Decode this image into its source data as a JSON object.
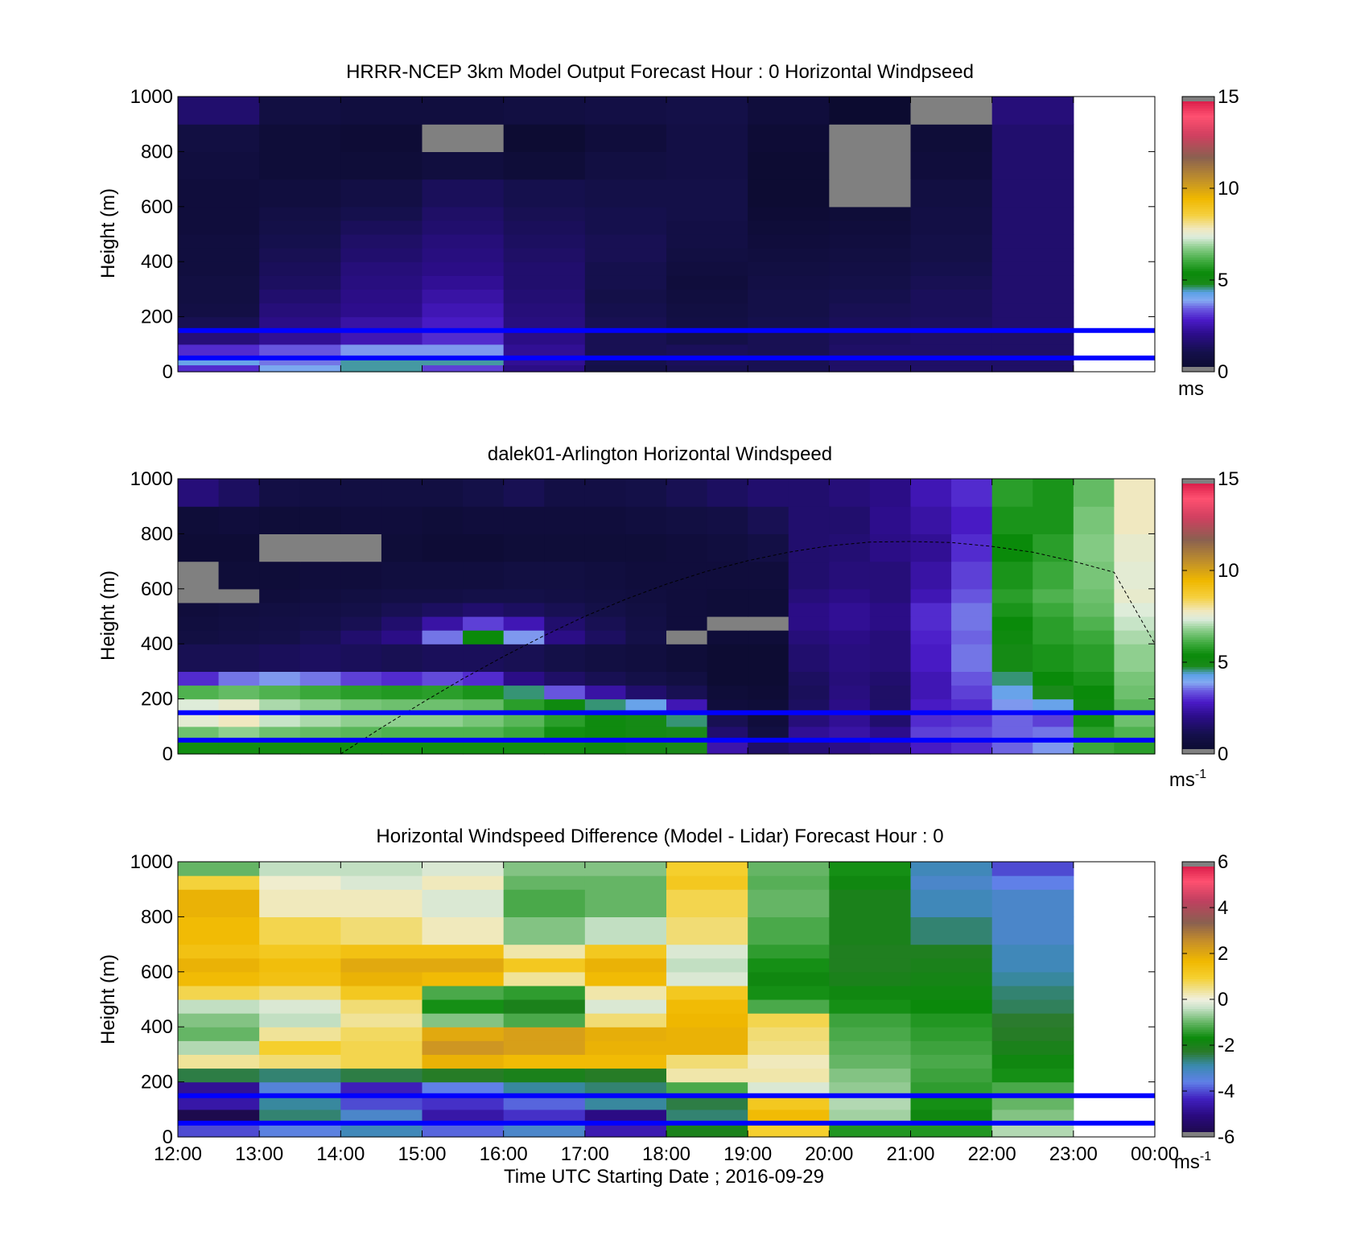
{
  "figure": {
    "xlabel": "Time UTC  Starting Date ; 2016-09-29",
    "x_ticks": [
      "12:00",
      "13:00",
      "14:00",
      "15:00",
      "16:00",
      "17:00",
      "18:00",
      "19:00",
      "20:00",
      "21:00",
      "22:00",
      "23:00",
      "00:00"
    ],
    "colors": {
      "band_line": "#0000ff",
      "missing": "#808080"
    }
  },
  "chart_data": [
    {
      "type": "heatmap",
      "title": "HRRR-NCEP 3km Model Output   Forecast Hour : 0 Horizontal Windpseed",
      "ylabel": "Height (m)",
      "y_ticks": [
        "0",
        "200",
        "400",
        "600",
        "800",
        "1000"
      ],
      "ylim": [
        0,
        1000
      ],
      "xlim_hours": [
        12,
        24
      ],
      "colorbar": {
        "ticks": [
          "0",
          "5",
          "10",
          "15"
        ],
        "range": [
          0,
          15
        ],
        "unit": "ms",
        "unit_sup": ""
      },
      "reference_heights": [
        150,
        50
      ],
      "x_hours": [
        12,
        13,
        14,
        15,
        16,
        17,
        18,
        19,
        20,
        21,
        22
      ],
      "cell_width_hours": 1,
      "y_levels": [
        0,
        25,
        50,
        100,
        150,
        200,
        250,
        300,
        350,
        400,
        450,
        500,
        550,
        600,
        700,
        800,
        900,
        1000
      ],
      "values": [
        [
          3.0,
          4.0,
          4.5,
          3.2,
          2.0,
          1.0,
          1.2,
          1.2,
          1.5,
          1.5,
          1.5
        ],
        [
          4.2,
          3.6,
          4.5,
          4.5,
          2.2,
          1.1,
          1.3,
          1.2,
          1.5,
          1.5,
          1.5
        ],
        [
          3.0,
          3.4,
          3.8,
          3.8,
          2.2,
          1.2,
          1.3,
          1.2,
          1.5,
          1.5,
          1.5
        ],
        [
          1.8,
          2.2,
          2.6,
          3.0,
          2.0,
          1.2,
          1.0,
          1.2,
          1.4,
          1.5,
          1.5
        ],
        [
          1.2,
          2.0,
          2.4,
          2.8,
          1.9,
          1.2,
          0.9,
          1.1,
          1.3,
          1.4,
          1.6
        ],
        [
          0.9,
          1.8,
          2.1,
          2.6,
          1.8,
          1.1,
          0.8,
          1.0,
          1.2,
          1.3,
          1.6
        ],
        [
          0.8,
          1.6,
          2.0,
          2.4,
          1.7,
          1.0,
          0.7,
          1.0,
          1.1,
          1.3,
          1.6
        ],
        [
          0.8,
          1.4,
          1.9,
          2.2,
          1.6,
          1.1,
          0.6,
          0.9,
          1.0,
          1.2,
          1.6
        ],
        [
          0.7,
          1.3,
          1.8,
          2.0,
          1.6,
          1.1,
          0.7,
          0.8,
          0.9,
          1.1,
          1.6
        ],
        [
          0.7,
          1.2,
          1.6,
          1.9,
          1.5,
          1.2,
          0.8,
          0.7,
          0.8,
          1.0,
          1.6
        ],
        [
          0.7,
          1.1,
          1.5,
          1.8,
          1.4,
          1.2,
          0.9,
          0.6,
          0.7,
          1.0,
          1.6
        ],
        [
          0.6,
          1.0,
          1.3,
          1.6,
          1.3,
          1.1,
          0.9,
          0.5,
          0.6,
          0.9,
          1.6
        ],
        [
          0.6,
          0.9,
          1.1,
          1.5,
          1.2,
          1.1,
          1.0,
          0.4,
          0.5,
          0.9,
          1.6
        ],
        [
          0.6,
          0.7,
          0.9,
          1.3,
          1.1,
          1.0,
          1.0,
          0.3,
          null,
          0.8,
          1.6
        ],
        [
          0.7,
          0.5,
          0.5,
          0.7,
          0.5,
          0.8,
          0.9,
          0.3,
          null,
          0.6,
          1.6
        ],
        [
          0.8,
          0.5,
          0.4,
          null,
          0.3,
          0.6,
          0.9,
          0.4,
          null,
          0.5,
          1.6
        ],
        [
          1.6,
          0.8,
          0.7,
          0.7,
          0.8,
          0.9,
          1.0,
          0.6,
          0.2,
          null,
          1.8
        ]
      ]
    },
    {
      "type": "heatmap",
      "title": "dalek01-Arlington  Horizontal Windspeed",
      "ylabel": "Height (m)",
      "y_ticks": [
        "0",
        "200",
        "400",
        "600",
        "800",
        "1000"
      ],
      "ylim": [
        0,
        1000
      ],
      "xlim_hours": [
        12,
        24
      ],
      "colorbar": {
        "ticks": [
          "0",
          "5",
          "10",
          "15"
        ],
        "range": [
          0,
          15
        ],
        "unit": "ms",
        "unit_sup": "-1"
      },
      "reference_heights": [
        150,
        50
      ],
      "x_hours": [
        12.0,
        12.5,
        13.0,
        13.5,
        14.0,
        14.5,
        15.0,
        15.5,
        16.0,
        16.5,
        17.0,
        17.5,
        18.0,
        18.5,
        19.0,
        19.5,
        20.0,
        20.5,
        21.0,
        21.5,
        22.0,
        22.5,
        23.0,
        23.5
      ],
      "cell_width_hours": 0.5,
      "y_levels": [
        0,
        50,
        100,
        150,
        200,
        250,
        300,
        400,
        450,
        500,
        550,
        600,
        700,
        800,
        900,
        1000
      ],
      "values": [
        [
          5.5,
          5.5,
          5.5,
          5.5,
          5.5,
          5.5,
          5.5,
          5.5,
          5.5,
          5.5,
          5.2,
          5.0,
          4.8,
          2.5,
          1.5,
          1.8,
          2.0,
          2.2,
          2.8,
          3.0,
          3.5,
          3.8,
          6.0,
          5.8
        ],
        [
          6.5,
          6.8,
          6.5,
          6.4,
          6.3,
          6.2,
          6.2,
          6.2,
          6.0,
          5.5,
          5.2,
          5.0,
          4.8,
          1.6,
          0.8,
          2.2,
          2.4,
          2.1,
          3.2,
          3.3,
          3.5,
          3.6,
          5.8,
          6.2
        ],
        [
          7.5,
          7.8,
          7.2,
          7.0,
          6.8,
          6.8,
          6.8,
          6.6,
          6.3,
          5.8,
          5.2,
          5.0,
          4.6,
          1.2,
          0.6,
          1.8,
          2.2,
          1.6,
          3.0,
          3.1,
          3.5,
          3.2,
          5.5,
          6.5
        ],
        [
          7.4,
          7.6,
          7.0,
          6.8,
          6.6,
          6.5,
          6.5,
          6.4,
          5.8,
          5.2,
          4.6,
          4.2,
          2.6,
          0.6,
          0.5,
          1.4,
          2.0,
          1.5,
          2.8,
          3.0,
          3.8,
          4.2,
          5.2,
          6.3
        ],
        [
          6.2,
          6.4,
          6.2,
          6.0,
          5.8,
          5.7,
          5.8,
          5.6,
          4.6,
          3.4,
          2.4,
          1.6,
          1.2,
          0.5,
          0.4,
          1.3,
          1.9,
          1.5,
          2.6,
          3.2,
          4.2,
          4.8,
          5.4,
          6.5
        ],
        [
          3.0,
          3.6,
          3.8,
          3.6,
          3.2,
          3.0,
          3.3,
          3.0,
          2.0,
          1.5,
          1.2,
          1.0,
          0.8,
          0.3,
          0.3,
          1.4,
          1.8,
          1.6,
          2.6,
          3.4,
          4.6,
          5.4,
          5.6,
          6.6
        ],
        [
          1.2,
          1.2,
          1.3,
          1.4,
          1.3,
          1.2,
          1.3,
          1.3,
          1.2,
          1.0,
          0.8,
          0.7,
          0.5,
          0.3,
          0.3,
          1.6,
          1.9,
          1.8,
          2.8,
          3.6,
          5.0,
          5.6,
          5.8,
          6.8
        ],
        [
          0.8,
          0.9,
          1.0,
          1.2,
          1.6,
          2.0,
          3.6,
          5.4,
          3.8,
          2.0,
          1.4,
          1.0,
          null,
          0.5,
          0.5,
          1.8,
          2.0,
          1.8,
          2.9,
          3.5,
          5.2,
          5.8,
          6.0,
          7.0
        ],
        [
          0.7,
          0.8,
          0.9,
          1.0,
          1.2,
          1.6,
          2.4,
          3.2,
          2.6,
          1.6,
          1.2,
          0.9,
          0.6,
          null,
          null,
          2.0,
          2.2,
          2.0,
          3.0,
          3.6,
          5.4,
          5.8,
          6.2,
          7.2
        ],
        [
          0.6,
          0.7,
          0.8,
          0.9,
          1.0,
          1.2,
          1.4,
          1.6,
          1.4,
          1.2,
          1.0,
          0.8,
          0.6,
          0.5,
          0.5,
          2.0,
          2.2,
          2.0,
          3.0,
          3.6,
          5.6,
          6.0,
          6.4,
          7.4
        ],
        [
          null,
          null,
          0.6,
          0.7,
          0.8,
          0.9,
          0.9,
          1.0,
          1.0,
          0.9,
          0.8,
          0.7,
          0.6,
          0.5,
          0.5,
          1.8,
          2.0,
          1.8,
          2.6,
          3.4,
          5.8,
          6.2,
          6.5,
          7.6
        ],
        [
          null,
          0.5,
          0.5,
          0.6,
          0.6,
          0.7,
          0.7,
          0.7,
          0.8,
          0.8,
          0.7,
          0.6,
          0.6,
          0.6,
          0.6,
          1.6,
          1.8,
          1.8,
          2.4,
          3.2,
          5.6,
          6.0,
          6.6,
          7.5
        ],
        [
          0.4,
          0.4,
          null,
          null,
          null,
          0.5,
          0.4,
          0.4,
          0.5,
          0.5,
          0.5,
          0.5,
          0.6,
          0.7,
          0.9,
          1.6,
          1.7,
          2.0,
          2.2,
          3.0,
          5.4,
          5.8,
          6.7,
          7.6
        ],
        [
          0.5,
          0.6,
          0.5,
          0.5,
          0.6,
          0.6,
          0.5,
          0.6,
          0.6,
          0.6,
          0.6,
          0.7,
          0.8,
          0.9,
          1.2,
          1.6,
          1.6,
          2.1,
          2.4,
          2.8,
          5.6,
          5.6,
          6.6,
          7.8
        ],
        [
          1.8,
          1.4,
          0.9,
          0.8,
          0.8,
          0.8,
          0.8,
          1.0,
          1.2,
          0.9,
          0.9,
          1.0,
          1.2,
          1.4,
          1.6,
          1.6,
          1.8,
          2.0,
          2.6,
          3.0,
          5.8,
          5.6,
          6.4,
          7.8
        ]
      ],
      "curve": {
        "x_hours": [
          14.0,
          14.5,
          15.0,
          15.5,
          16.0,
          16.5,
          17.0,
          17.5,
          18.0,
          18.5,
          19.0,
          19.5,
          20.0,
          20.5,
          21.0,
          21.5,
          22.0,
          22.5,
          23.0,
          23.5,
          24.0
        ],
        "heights": [
          0,
          95,
          186,
          273,
          354,
          430,
          500,
          562,
          617,
          664,
          702,
          733,
          756,
          770,
          772,
          768,
          754,
          733,
          700,
          660,
          400
        ]
      }
    },
    {
      "type": "heatmap",
      "title": "Horizontal Windspeed Difference (Model - Lidar) Forecast Hour : 0",
      "ylabel": "Height (m)",
      "y_ticks": [
        "0",
        "200",
        "400",
        "600",
        "800",
        "1000"
      ],
      "ylim": [
        0,
        1000
      ],
      "xlim_hours": [
        12,
        24
      ],
      "colorbar": {
        "ticks": [
          "-6",
          "-4",
          "-2",
          "0",
          "2",
          "4",
          "6"
        ],
        "range": [
          -6,
          6
        ],
        "unit": "ms",
        "unit_sup": "-1"
      },
      "reference_heights": [
        150,
        50
      ],
      "x_hours": [
        12,
        13,
        14,
        15,
        16,
        17,
        18,
        19,
        20,
        21,
        22
      ],
      "cell_width_hours": 1,
      "y_levels": [
        0,
        50,
        100,
        150,
        200,
        250,
        300,
        350,
        400,
        450,
        500,
        550,
        600,
        650,
        700,
        800,
        900,
        950,
        1000
      ],
      "values": [
        [
          -4.0,
          -3.5,
          -3.0,
          -3.8,
          -3.2,
          -4.5,
          -2.0,
          1.0,
          -1.5,
          -1.5,
          -0.5
        ],
        [
          -5.8,
          -2.6,
          -3.2,
          -4.6,
          -4.2,
          -5.0,
          -2.6,
          1.6,
          -0.6,
          -1.8,
          -0.8
        ],
        [
          -4.6,
          -2.8,
          -4.0,
          -4.2,
          -3.8,
          -2.8,
          -2.4,
          1.2,
          -0.5,
          -1.6,
          -1.0
        ],
        [
          -4.8,
          -3.4,
          -4.4,
          -3.6,
          -2.8,
          -2.6,
          -1.2,
          -0.2,
          -0.7,
          -1.4,
          -1.2
        ],
        [
          -2.4,
          -2.6,
          -2.4,
          -2.2,
          -2.0,
          -2.2,
          0.3,
          0.3,
          -0.8,
          -1.3,
          -1.6
        ],
        [
          0.4,
          0.6,
          0.8,
          1.8,
          1.6,
          1.6,
          0.6,
          0.2,
          -1.0,
          -1.2,
          -1.8
        ],
        [
          -0.5,
          1.0,
          0.8,
          2.4,
          2.2,
          1.8,
          1.8,
          0.5,
          -1.1,
          -1.3,
          -2.0
        ],
        [
          -1.0,
          0.4,
          0.7,
          2.0,
          2.2,
          1.9,
          1.8,
          0.6,
          -1.2,
          -1.4,
          -2.2
        ],
        [
          -0.8,
          -0.4,
          0.4,
          -0.8,
          -1.2,
          0.6,
          1.7,
          0.8,
          -1.3,
          -1.5,
          -2.3
        ],
        [
          -0.4,
          -0.2,
          0.6,
          -1.6,
          -2.0,
          -0.2,
          1.6,
          -1.2,
          -1.6,
          -1.7,
          -2.5
        ],
        [
          0.8,
          0.6,
          1.2,
          -1.2,
          -1.4,
          0.3,
          1.2,
          -1.6,
          -1.8,
          -1.8,
          -2.6
        ],
        [
          1.6,
          1.4,
          1.8,
          1.6,
          0.4,
          1.6,
          -0.2,
          -1.8,
          -2.0,
          -1.9,
          -2.8
        ],
        [
          1.8,
          1.5,
          2.0,
          2.0,
          1.2,
          1.8,
          -0.4,
          -1.6,
          -2.1,
          -2.0,
          -3.0
        ],
        [
          1.4,
          1.2,
          1.4,
          1.4,
          0.3,
          1.2,
          -0.2,
          -1.4,
          -2.1,
          -2.1,
          -3.0
        ],
        [
          1.6,
          0.8,
          0.6,
          0.2,
          -0.8,
          -0.4,
          0.6,
          -1.2,
          -2.0,
          -2.6,
          -3.2
        ],
        [
          1.8,
          0.2,
          0.2,
          -0.2,
          -1.2,
          -1.0,
          0.8,
          -1.0,
          -2.0,
          -3.0,
          -3.2
        ],
        [
          0.9,
          0.1,
          -0.2,
          0.2,
          -1.0,
          -1.0,
          1.2,
          -1.1,
          -1.8,
          -3.2,
          -3.6
        ],
        [
          -1.0,
          -0.4,
          -0.4,
          -0.2,
          -0.8,
          -0.8,
          1.0,
          -1.0,
          -1.6,
          -3.0,
          -4.0
        ]
      ]
    }
  ]
}
